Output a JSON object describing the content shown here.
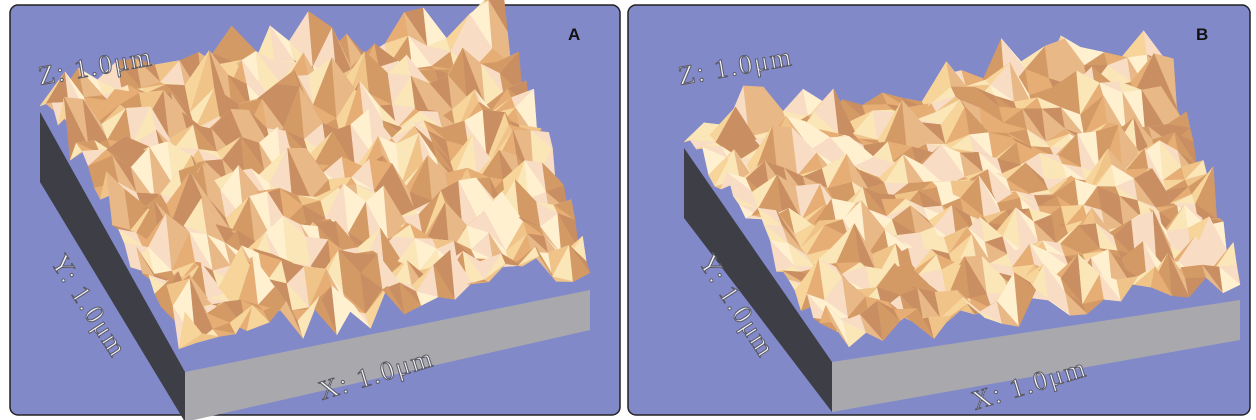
{
  "panels": [
    {
      "label": "A",
      "z_label": "Z: 1.0μm",
      "y_label": "Y: 1.0μm",
      "x_label": "X: 1.0μm"
    },
    {
      "label": "B",
      "z_label": "Z: 1.0μm",
      "y_label": "Y: 1.0μm",
      "x_label": "X: 1.0μm"
    }
  ]
}
